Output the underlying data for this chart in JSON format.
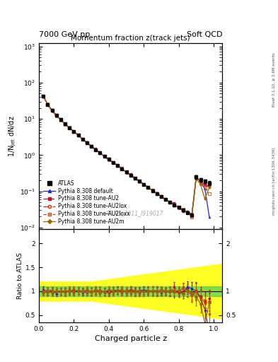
{
  "title_top_left": "7000 GeV pp",
  "title_top_right": "Soft QCD",
  "main_title": "Momentum fraction z(track jets)",
  "ylabel_main": "1/N$_\\mathrm{jet}$ dN/dz",
  "ylabel_ratio": "Ratio to ATLAS",
  "xlabel": "Charged particle z",
  "right_label_top": "Rivet 3.1.10, ≥ 2.6M events",
  "right_label_bottom": "mcplots.cern.ch [arXiv:1306.3436]",
  "watermark": "ATLAS_2011_I919017",
  "ylim_main": [
    0.009,
    1200
  ],
  "ylim_ratio": [
    0.35,
    2.3
  ],
  "xlim": [
    0.0,
    1.05
  ],
  "z_values": [
    0.025,
    0.05,
    0.075,
    0.1,
    0.125,
    0.15,
    0.175,
    0.2,
    0.225,
    0.25,
    0.275,
    0.3,
    0.325,
    0.35,
    0.375,
    0.4,
    0.425,
    0.45,
    0.475,
    0.5,
    0.525,
    0.55,
    0.575,
    0.6,
    0.625,
    0.65,
    0.675,
    0.7,
    0.725,
    0.75,
    0.775,
    0.8,
    0.825,
    0.85,
    0.875,
    0.9,
    0.925,
    0.95,
    0.975
  ],
  "atlas_y": [
    42.0,
    25.0,
    17.0,
    12.5,
    9.5,
    7.2,
    5.6,
    4.4,
    3.5,
    2.75,
    2.2,
    1.75,
    1.42,
    1.15,
    0.93,
    0.76,
    0.62,
    0.51,
    0.42,
    0.34,
    0.28,
    0.23,
    0.19,
    0.155,
    0.128,
    0.105,
    0.087,
    0.072,
    0.06,
    0.05,
    0.042,
    0.036,
    0.03,
    0.026,
    0.022,
    0.25,
    0.21,
    0.19,
    0.17
  ],
  "atlas_yerr_lo": [
    2.0,
    1.2,
    0.85,
    0.6,
    0.45,
    0.35,
    0.27,
    0.21,
    0.17,
    0.13,
    0.11,
    0.09,
    0.07,
    0.057,
    0.046,
    0.038,
    0.031,
    0.026,
    0.021,
    0.017,
    0.014,
    0.012,
    0.01,
    0.008,
    0.007,
    0.006,
    0.005,
    0.004,
    0.003,
    0.003,
    0.003,
    0.002,
    0.002,
    0.002,
    0.002,
    0.03,
    0.025,
    0.023,
    0.021
  ],
  "atlas_yerr_hi": [
    2.0,
    1.2,
    0.85,
    0.6,
    0.45,
    0.35,
    0.27,
    0.21,
    0.17,
    0.13,
    0.11,
    0.09,
    0.07,
    0.057,
    0.046,
    0.038,
    0.031,
    0.026,
    0.021,
    0.017,
    0.014,
    0.012,
    0.01,
    0.008,
    0.007,
    0.006,
    0.005,
    0.004,
    0.003,
    0.003,
    0.003,
    0.002,
    0.002,
    0.002,
    0.002,
    0.03,
    0.025,
    0.023,
    0.021
  ],
  "colors": {
    "atlas": "#000000",
    "default": "#2222cc",
    "au2": "#bb1133",
    "au2lox": "#cc3311",
    "au2loxx": "#bb5522",
    "au2m": "#996600"
  },
  "legend_entries": [
    "ATLAS",
    "Pythia 8.308 default",
    "Pythia 8.308 tune-AU2",
    "Pythia 8.308 tune-AU2lox",
    "Pythia 8.308 tune-AU2loxx",
    "Pythia 8.308 tune-AU2m"
  ]
}
